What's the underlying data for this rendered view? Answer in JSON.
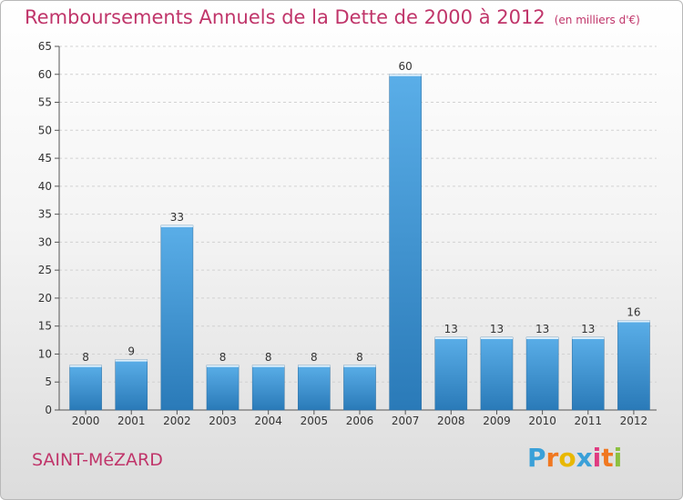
{
  "header": {
    "title": "Remboursements Annuels de la Dette de 2000 à 2012",
    "unit": "(en milliers d'€)"
  },
  "footer": {
    "town": "SAINT-MéZARD",
    "logo_letters": [
      "P",
      "r",
      "o",
      "x",
      "i",
      "t",
      "i"
    ],
    "logo_colors": [
      "#3aa0d8",
      "#f07820",
      "#e8b800",
      "#3aa0d8",
      "#e03a80",
      "#f07820",
      "#8cc040"
    ]
  },
  "chart_data": {
    "type": "bar",
    "title": "Remboursements Annuels de la Dette de 2000 à 2012",
    "categories": [
      "2000",
      "2001",
      "2002",
      "2003",
      "2004",
      "2005",
      "2006",
      "2007",
      "2008",
      "2009",
      "2010",
      "2011",
      "2012"
    ],
    "values": [
      8,
      9,
      33,
      8,
      8,
      8,
      8,
      60,
      13,
      13,
      13,
      13,
      16
    ],
    "ylim": [
      0,
      65
    ],
    "yticks": [
      0,
      5,
      10,
      15,
      20,
      25,
      30,
      35,
      40,
      45,
      50,
      55,
      60,
      65
    ],
    "grid": true,
    "bar_color_top": "#5aaee8",
    "bar_color_bottom": "#2a7ab8"
  }
}
